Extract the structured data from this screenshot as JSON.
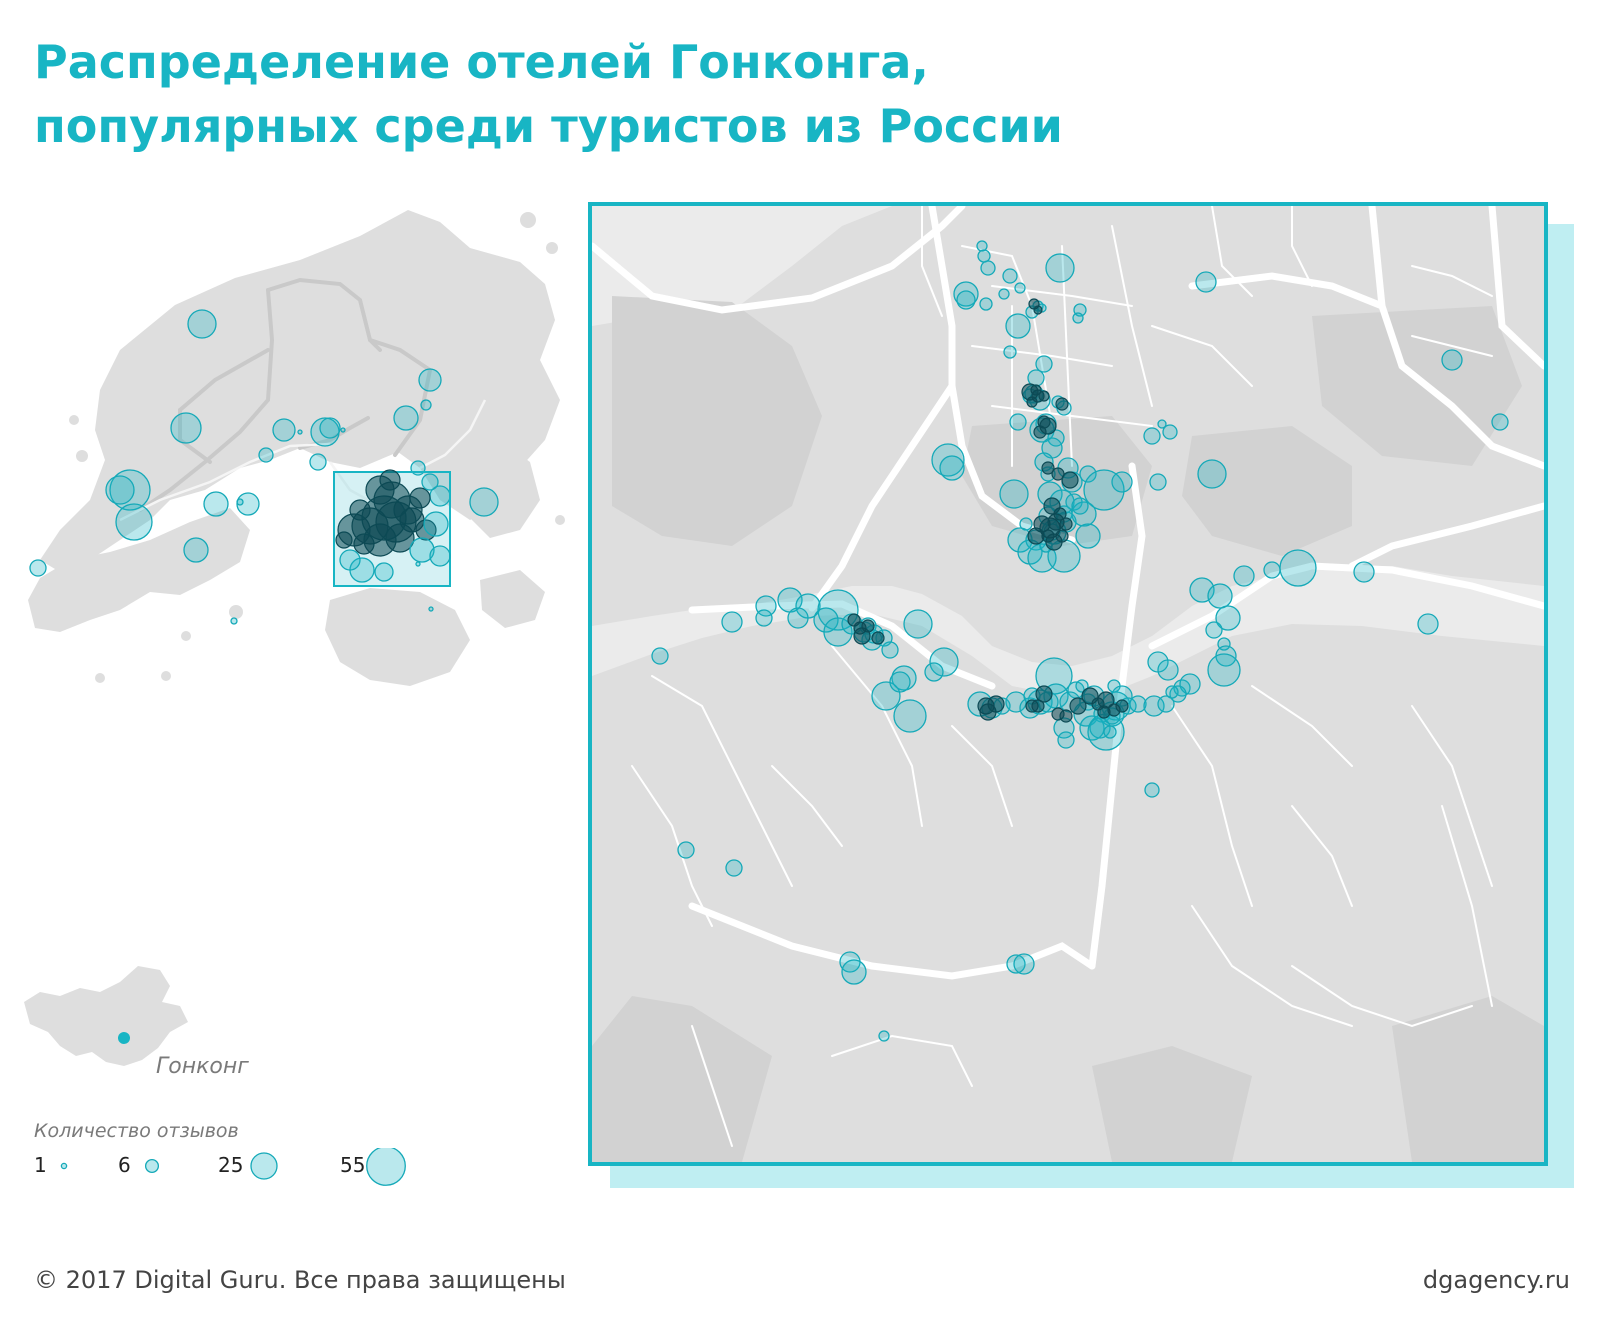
{
  "title": {
    "line1": "Распределение отелей Гонконга,",
    "line2": "популярных среди туристов из России"
  },
  "inset": {
    "label": "Гонконг"
  },
  "legend": {
    "title": "Количество отзывов",
    "items": [
      {
        "label": "1",
        "value": 1
      },
      {
        "label": "6",
        "value": 6
      },
      {
        "label": "25",
        "value": 25
      },
      {
        "label": "55",
        "value": 55
      }
    ]
  },
  "footer": {
    "copyright": "© 2017 Digital Guru. Все права защищены",
    "site": "dgagency.ru"
  },
  "colors": {
    "accent": "#18b5c4",
    "bubble_fill": "rgba(25,180,195,0.30)",
    "land": "#dedede",
    "water": "#ebebeb",
    "roads": "#ffffff"
  }
}
